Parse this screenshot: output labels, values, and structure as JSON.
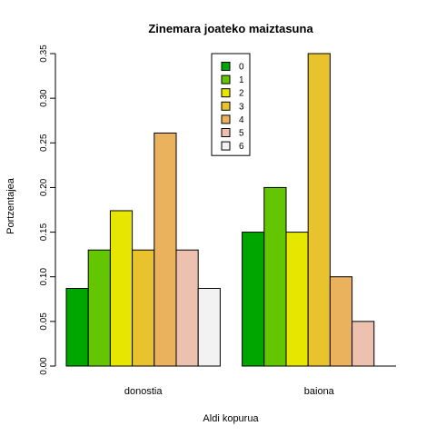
{
  "chart_data": {
    "type": "bar",
    "title": "Zinemara joateko maiztasuna",
    "xlabel": "Aldi kopurua",
    "ylabel": "Portzentajea",
    "ylim": [
      0,
      0.35
    ],
    "yticks": [
      "0.00",
      "0.05",
      "0.10",
      "0.15",
      "0.20",
      "0.25",
      "0.30",
      "0.35"
    ],
    "categories": [
      "donostia",
      "baiona"
    ],
    "legend_position": "top-center",
    "grid": false,
    "series": [
      {
        "name": "0",
        "color": "#00A600",
        "values": [
          0.087,
          0.15
        ]
      },
      {
        "name": "1",
        "color": "#63C600",
        "values": [
          0.13,
          0.2
        ]
      },
      {
        "name": "2",
        "color": "#E6E600",
        "values": [
          0.174,
          0.15
        ]
      },
      {
        "name": "3",
        "color": "#E8C32E",
        "values": [
          0.13,
          0.35
        ]
      },
      {
        "name": "4",
        "color": "#EBB25E",
        "values": [
          0.261,
          0.1
        ]
      },
      {
        "name": "5",
        "color": "#EDC1B0",
        "values": [
          0.13,
          0.05
        ]
      },
      {
        "name": "6",
        "color": "#F2F2F2",
        "values": [
          0.087,
          0.0
        ]
      }
    ]
  }
}
